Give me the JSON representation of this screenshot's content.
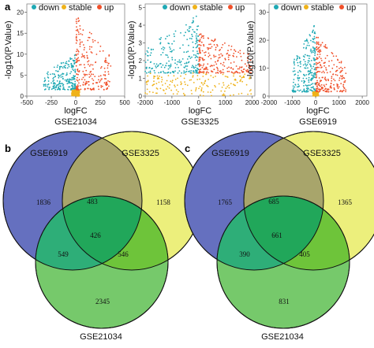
{
  "panels": [
    "a",
    "b",
    "c"
  ],
  "legend": {
    "items": [
      {
        "label": "down",
        "color": "#1fa9b4"
      },
      {
        "label": "stable",
        "color": "#efb21a"
      },
      {
        "label": "up",
        "color": "#f0502a"
      }
    ]
  },
  "chart_data": [
    {
      "type": "scatter",
      "title": "GSE21034",
      "xlabel": "logFC",
      "ylabel": "-log10(P.Value)",
      "xlim": [
        -500,
        500
      ],
      "ylim": [
        0,
        22
      ],
      "xticks": [
        -500,
        -250,
        0,
        250,
        500
      ],
      "yticks": [
        0,
        5,
        10,
        15,
        20
      ],
      "series": [
        {
          "name": "down",
          "color": "#1fa9b4",
          "x_range": [
            -330,
            -5
          ],
          "y_range": [
            1.5,
            10
          ]
        },
        {
          "name": "stable",
          "color": "#efb21a",
          "x_range": [
            -40,
            40
          ],
          "y_range": [
            0,
            1.5
          ]
        },
        {
          "name": "up",
          "color": "#f0502a",
          "x_range": [
            5,
            360
          ],
          "y_range": [
            1.5,
            20
          ]
        }
      ]
    },
    {
      "type": "scatter",
      "title": "GSE3325",
      "xlabel": "logFC",
      "ylabel": "-log10(P.Value)",
      "xlim": [
        -2000,
        2100
      ],
      "ylim": [
        0,
        5.2
      ],
      "xticks": [
        -2000,
        -1000,
        0,
        1000,
        2000
      ],
      "yticks": [
        0,
        1,
        2,
        3,
        4,
        5
      ],
      "series": [
        {
          "name": "down",
          "color": "#1fa9b4",
          "x_range": [
            -2000,
            -10
          ],
          "y_range": [
            1.3,
            4.6
          ]
        },
        {
          "name": "stable",
          "color": "#efb21a",
          "x_range": [
            -2000,
            2000
          ],
          "y_range": [
            0,
            1.3
          ]
        },
        {
          "name": "up",
          "color": "#f0502a",
          "x_range": [
            10,
            2000
          ],
          "y_range": [
            1.3,
            3.6
          ]
        }
      ]
    },
    {
      "type": "scatter",
      "title": "GSE6919",
      "xlabel": "logFC",
      "ylabel": "-log10(P.Value)",
      "xlim": [
        -2000,
        2200
      ],
      "ylim": [
        0,
        33
      ],
      "xticks": [
        -2000,
        -1000,
        0,
        1000,
        2000
      ],
      "yticks": [
        0,
        10,
        20,
        30
      ],
      "series": [
        {
          "name": "down",
          "color": "#1fa9b4",
          "x_range": [
            -1000,
            -20
          ],
          "y_range": [
            1.5,
            26
          ]
        },
        {
          "name": "stable",
          "color": "#efb21a",
          "x_range": [
            -120,
            120
          ],
          "y_range": [
            0,
            1.5
          ]
        },
        {
          "name": "up",
          "color": "#f0502a",
          "x_range": [
            20,
            1300
          ],
          "y_range": [
            1.5,
            22
          ]
        }
      ]
    }
  ],
  "venn": [
    {
      "sets": [
        {
          "label": "GSE6919",
          "color": "#6570bf"
        },
        {
          "label": "GSE3325",
          "color": "#ecef7c"
        },
        {
          "label": "GSE21034",
          "color": "#76c96b"
        }
      ],
      "regions": {
        "a_only": "1836",
        "b_only": "1158",
        "c_only": "2345",
        "ab": "483",
        "ac": "549",
        "bc": "546",
        "abc": "426"
      }
    },
    {
      "sets": [
        {
          "label": "GSE6919",
          "color": "#6570bf"
        },
        {
          "label": "GSE3325",
          "color": "#ecef7c"
        },
        {
          "label": "GSE21034",
          "color": "#76c96b"
        }
      ],
      "regions": {
        "a_only": "1765",
        "b_only": "1365",
        "c_only": "831",
        "ab": "685",
        "ac": "390",
        "bc": "405",
        "abc": "661"
      }
    }
  ]
}
